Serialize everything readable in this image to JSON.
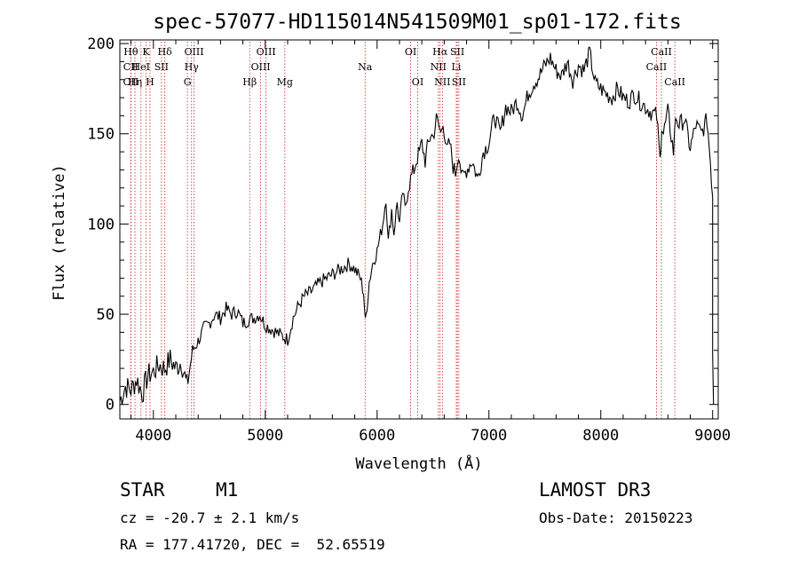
{
  "chart_data": {
    "type": "line",
    "title": "spec-57077-HD115014N541509M01_sp01-172.fits",
    "xlabel": "Wavelength (Å)",
    "ylabel": "Flux (relative)",
    "xlim": [
      3700,
      9050
    ],
    "ylim": [
      -8,
      202
    ],
    "x_ticks": [
      4000,
      5000,
      6000,
      7000,
      8000,
      9000
    ],
    "y_ticks": [
      0,
      50,
      100,
      150,
      200
    ],
    "grid": false,
    "series": [
      {
        "name": "flux",
        "x": [
          3700,
          3750,
          3800,
          3850,
          3900,
          3950,
          4000,
          4050,
          4100,
          4150,
          4200,
          4250,
          4300,
          4350,
          4400,
          4450,
          4500,
          4550,
          4600,
          4650,
          4700,
          4750,
          4800,
          4850,
          4900,
          4950,
          5000,
          5050,
          5100,
          5150,
          5200,
          5250,
          5300,
          5350,
          5400,
          5450,
          5500,
          5550,
          5600,
          5650,
          5700,
          5750,
          5800,
          5850,
          5880,
          5895,
          5910,
          5930,
          5960,
          6000,
          6050,
          6080,
          6100,
          6130,
          6150,
          6180,
          6200,
          6230,
          6250,
          6280,
          6300,
          6330,
          6350,
          6380,
          6400,
          6430,
          6450,
          6480,
          6500,
          6530,
          6550,
          6570,
          6590,
          6620,
          6650,
          6680,
          6700,
          6730,
          6760,
          6800,
          6850,
          6900,
          6950,
          7000,
          7050,
          7100,
          7150,
          7200,
          7250,
          7300,
          7350,
          7400,
          7450,
          7500,
          7550,
          7600,
          7650,
          7700,
          7750,
          7800,
          7850,
          7900,
          7950,
          8000,
          8050,
          8100,
          8150,
          8200,
          8250,
          8300,
          8350,
          8400,
          8450,
          8500,
          8530,
          8545,
          8560,
          8600,
          8650,
          8670,
          8700,
          8750,
          8800,
          8850,
          8900,
          8950,
          8980,
          9000
        ],
        "values": [
          2,
          10,
          8,
          14,
          6,
          16,
          18,
          22,
          20,
          25,
          20,
          24,
          10,
          30,
          35,
          42,
          45,
          50,
          48,
          53,
          50,
          52,
          45,
          47,
          48,
          50,
          44,
          42,
          40,
          38,
          36,
          48,
          55,
          60,
          62,
          65,
          68,
          70,
          72,
          74,
          76,
          78,
          75,
          70,
          62,
          45,
          55,
          68,
          78,
          85,
          100,
          115,
          90,
          108,
          95,
          112,
          100,
          118,
          108,
          120,
          125,
          130,
          135,
          140,
          145,
          135,
          142,
          150,
          148,
          158,
          155,
          150,
          158,
          140,
          145,
          132,
          128,
          140,
          125,
          130,
          135,
          125,
          140,
          145,
          160,
          150,
          165,
          162,
          168,
          160,
          172,
          178,
          182,
          188,
          192,
          185,
          182,
          190,
          180,
          188,
          185,
          195,
          178,
          175,
          172,
          170,
          175,
          170,
          168,
          172,
          168,
          165,
          162,
          160,
          135,
          155,
          150,
          162,
          140,
          160,
          155,
          158,
          142,
          155,
          150,
          158,
          135,
          115
        ]
      }
    ],
    "spectral_lines": [
      {
        "label": "Hθ",
        "x": 3798,
        "row": 0
      },
      {
        "label": "CII",
        "x": 3798,
        "row": 1
      },
      {
        "label": "OII",
        "x": 3798,
        "row": 2
      },
      {
        "label": "K",
        "x": 3934,
        "row": 0
      },
      {
        "label": "HeI",
        "x": 3889,
        "row": 1
      },
      {
        "label": "Hη",
        "x": 3835,
        "row": 2
      },
      {
        "label": "H",
        "x": 3969,
        "row": 2
      },
      {
        "label": "SII",
        "x": 4072,
        "row": 1
      },
      {
        "label": "Hδ",
        "x": 4102,
        "row": 0
      },
      {
        "label": "OIII",
        "x": 4363,
        "row": 0
      },
      {
        "label": "Hγ",
        "x": 4341,
        "row": 1
      },
      {
        "label": "G",
        "x": 4304,
        "row": 2
      },
      {
        "label": "Hβ",
        "x": 4861,
        "row": 2
      },
      {
        "label": "OIII",
        "x": 5007,
        "row": 0
      },
      {
        "label": "OIII",
        "x": 4959,
        "row": 1
      },
      {
        "label": "Mg",
        "x": 5175,
        "row": 2
      },
      {
        "label": "Na",
        "x": 5893,
        "row": 1
      },
      {
        "label": "OI",
        "x": 6300,
        "row": 0
      },
      {
        "label": "OI",
        "x": 6363,
        "row": 2
      },
      {
        "label": "Hα",
        "x": 6563,
        "row": 0
      },
      {
        "label": "NII",
        "x": 6548,
        "row": 1
      },
      {
        "label": "NII",
        "x": 6584,
        "row": 2
      },
      {
        "label": "SII",
        "x": 6717,
        "row": 0
      },
      {
        "label": "Li",
        "x": 6708,
        "row": 1
      },
      {
        "label": "SII",
        "x": 6731,
        "row": 2
      },
      {
        "label": "CaII",
        "x": 8542,
        "row": 0
      },
      {
        "label": "CaII",
        "x": 8498,
        "row": 1
      },
      {
        "label": "CaII",
        "x": 8662,
        "row": 2
      }
    ]
  },
  "info": {
    "object_class": "STAR",
    "subclass": "M1",
    "survey": "LAMOST DR3",
    "cz": "cz = -20.7 ± 2.1 km/s",
    "obs_date": "Obs-Date: 20150223",
    "coords": "RA = 177.41720, DEC =  52.65519"
  },
  "colors": {
    "line": "#000000",
    "marker_line": "#cc2222",
    "background": "#ffffff"
  }
}
